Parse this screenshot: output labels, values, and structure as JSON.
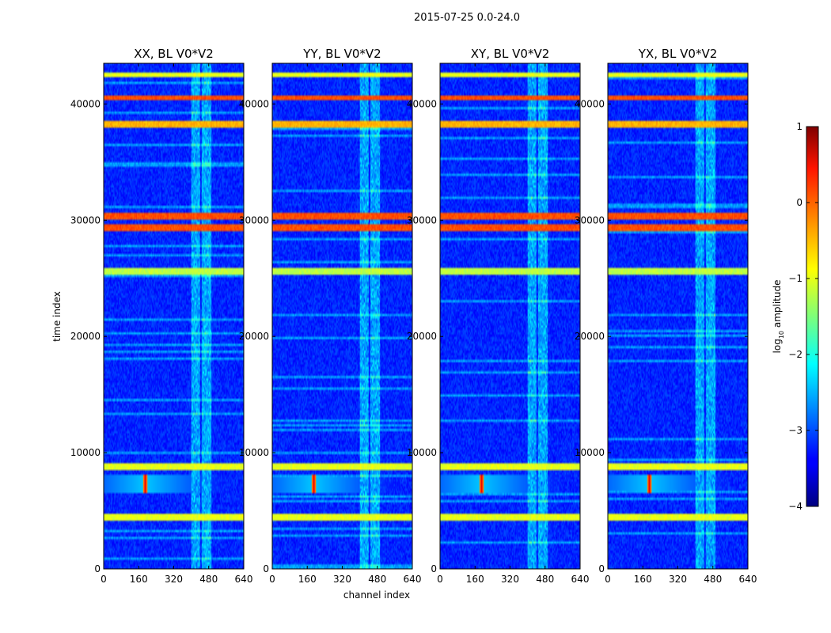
{
  "chart_data": {
    "type": "heatmap",
    "suptitle": "2015-07-25 0.0-24.0",
    "xlabel": "channel index",
    "ylabel": "time index",
    "xlim": [
      0,
      640
    ],
    "ylim": [
      0,
      43500
    ],
    "xticks": [
      0,
      160,
      320,
      480,
      640
    ],
    "yticks": [
      0,
      10000,
      20000,
      30000,
      40000
    ],
    "panels": [
      {
        "title": "XX, BL V0*V2"
      },
      {
        "title": "YY, BL V0*V2"
      },
      {
        "title": "XY, BL V0*V2"
      },
      {
        "title": "YX, BL V0*V2"
      }
    ],
    "colorbar": {
      "label": "log",
      "label_sub": "10",
      "label_rest": " amplitude",
      "min": -4,
      "max": 1,
      "ticks": [
        1,
        0,
        -1,
        -2,
        -3,
        -4
      ],
      "ticklabels": [
        "1",
        "0",
        "−1",
        "−2",
        "−3",
        "−4"
      ],
      "colormap": "jet"
    },
    "features": {
      "background_level": -3.2,
      "active_channel_bands": [
        [
          400,
          440
        ],
        [
          450,
          490
        ]
      ],
      "strong_time_rows": [
        {
          "t": 4400,
          "level": -1.0
        },
        {
          "t": 8800,
          "level": -1.0
        },
        {
          "t": 25600,
          "level": -1.2
        },
        {
          "t": 29400,
          "level": 0.0
        },
        {
          "t": 30400,
          "level": 0.0
        },
        {
          "t": 38200,
          "level": -0.5
        },
        {
          "t": 40500,
          "level": 0.0
        },
        {
          "t": 42500,
          "level": -1.0
        }
      ],
      "hotspot": {
        "channel": 190,
        "time_range": [
          6500,
          8200
        ],
        "level": 0.5
      }
    }
  }
}
